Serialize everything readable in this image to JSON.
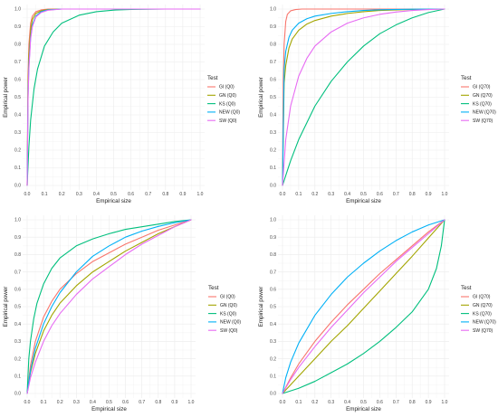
{
  "colors": {
    "GI": "#F8766D",
    "GN": "#A3A500",
    "KS": "#00BF7D",
    "NEW": "#00B0F6",
    "SW": "#E76BF3",
    "grid": "#ebebeb",
    "axis": "#444444"
  },
  "chart_data": [
    {
      "type": "line",
      "xlabel": "Empirical size",
      "ylabel": "Empirical power",
      "xlim": [
        0,
        1
      ],
      "ylim": [
        0,
        1
      ],
      "x_ticks": [
        "0.0",
        "0.1",
        "0.2",
        "0.3",
        "0.4",
        "0.5",
        "0.6",
        "0.7",
        "0.8",
        "0.9",
        "1.0"
      ],
      "y_ticks": [
        "0.0",
        "0.1",
        "0.2",
        "0.3",
        "0.4",
        "0.5",
        "0.6",
        "0.7",
        "0.8",
        "0.9",
        "1.0"
      ],
      "grid": true,
      "legend": {
        "title": "Test",
        "position": "right"
      },
      "series": [
        {
          "name": "GI (Q0)",
          "key": "GI",
          "x": [
            0,
            0.005,
            0.01,
            0.02,
            0.03,
            0.05,
            0.08,
            0.12,
            0.2,
            0.35,
            0.6,
            1
          ],
          "y": [
            0,
            0.62,
            0.8,
            0.92,
            0.96,
            0.985,
            0.995,
            1,
            1,
            1,
            1,
            1
          ]
        },
        {
          "name": "GN (Q0)",
          "key": "GN",
          "x": [
            0,
            0.005,
            0.01,
            0.02,
            0.03,
            0.05,
            0.08,
            0.12,
            0.2,
            0.35,
            0.6,
            1
          ],
          "y": [
            0,
            0.55,
            0.74,
            0.88,
            0.94,
            0.975,
            0.99,
            0.997,
            1,
            1,
            1,
            1
          ]
        },
        {
          "name": "KS (Q0)",
          "key": "KS",
          "x": [
            0,
            0.01,
            0.02,
            0.04,
            0.06,
            0.1,
            0.15,
            0.2,
            0.3,
            0.4,
            0.5,
            0.6,
            0.8,
            1
          ],
          "y": [
            0,
            0.22,
            0.37,
            0.55,
            0.66,
            0.79,
            0.87,
            0.92,
            0.965,
            0.985,
            0.994,
            0.998,
            1,
            1
          ]
        },
        {
          "name": "NEW (Q0)",
          "key": "NEW",
          "x": [
            0,
            0.005,
            0.01,
            0.02,
            0.03,
            0.05,
            0.08,
            0.12,
            0.2,
            0.35,
            0.6,
            1
          ],
          "y": [
            0,
            0.5,
            0.68,
            0.84,
            0.91,
            0.96,
            0.985,
            0.995,
            1,
            1,
            1,
            1
          ]
        },
        {
          "name": "SW (Q0)",
          "key": "SW",
          "x": [
            0,
            0.005,
            0.01,
            0.02,
            0.03,
            0.05,
            0.08,
            0.12,
            0.2,
            0.35,
            0.6,
            1
          ],
          "y": [
            0,
            0.48,
            0.66,
            0.83,
            0.9,
            0.955,
            0.98,
            0.993,
            1,
            1,
            1,
            1
          ]
        }
      ]
    },
    {
      "type": "line",
      "xlabel": "Empirical size",
      "ylabel": "Empirical power",
      "xlim": [
        0,
        1
      ],
      "ylim": [
        0,
        1
      ],
      "x_ticks": [
        "0.0",
        "0.1",
        "0.2",
        "0.3",
        "0.4",
        "0.5",
        "0.6",
        "0.7",
        "0.8",
        "0.9",
        "1.0"
      ],
      "y_ticks": [
        "0.0",
        "0.1",
        "0.2",
        "0.3",
        "0.4",
        "0.5",
        "0.6",
        "0.7",
        "0.8",
        "0.9",
        "1.0"
      ],
      "grid": true,
      "legend": {
        "title": "Test",
        "position": "right"
      },
      "series": [
        {
          "name": "GI (Q70)",
          "key": "GI",
          "x": [
            0,
            0.005,
            0.01,
            0.02,
            0.03,
            0.05,
            0.08,
            0.12,
            0.2,
            0.35,
            0.6,
            1
          ],
          "y": [
            0,
            0.6,
            0.8,
            0.93,
            0.97,
            0.99,
            0.997,
            1,
            1,
            1,
            1,
            1
          ]
        },
        {
          "name": "GN (Q70)",
          "key": "GN",
          "x": [
            0,
            0.01,
            0.02,
            0.04,
            0.06,
            0.1,
            0.15,
            0.2,
            0.3,
            0.4,
            0.5,
            0.6,
            0.8,
            1
          ],
          "y": [
            0,
            0.58,
            0.68,
            0.78,
            0.83,
            0.88,
            0.915,
            0.935,
            0.96,
            0.975,
            0.985,
            0.992,
            0.998,
            1
          ]
        },
        {
          "name": "KS (Q70)",
          "key": "KS",
          "x": [
            0,
            0.05,
            0.1,
            0.2,
            0.3,
            0.4,
            0.5,
            0.6,
            0.7,
            0.8,
            0.9,
            1
          ],
          "y": [
            0,
            0.14,
            0.26,
            0.45,
            0.59,
            0.7,
            0.79,
            0.86,
            0.91,
            0.95,
            0.98,
            1
          ]
        },
        {
          "name": "NEW (Q70)",
          "key": "NEW",
          "x": [
            0,
            0.01,
            0.02,
            0.04,
            0.06,
            0.1,
            0.15,
            0.2,
            0.3,
            0.4,
            0.5,
            0.6,
            0.8,
            1
          ],
          "y": [
            0,
            0.66,
            0.76,
            0.84,
            0.88,
            0.92,
            0.945,
            0.96,
            0.975,
            0.985,
            0.992,
            0.996,
            0.999,
            1
          ]
        },
        {
          "name": "SW (Q70)",
          "key": "SW",
          "x": [
            0,
            0.02,
            0.05,
            0.1,
            0.15,
            0.2,
            0.3,
            0.4,
            0.5,
            0.6,
            0.7,
            0.8,
            0.9,
            1
          ],
          "y": [
            0,
            0.26,
            0.45,
            0.62,
            0.72,
            0.79,
            0.87,
            0.92,
            0.95,
            0.97,
            0.983,
            0.992,
            0.997,
            1
          ]
        }
      ]
    },
    {
      "type": "line",
      "xlabel": "Empirical size",
      "ylabel": "Empirical power",
      "xlim": [
        0,
        1
      ],
      "ylim": [
        0,
        1
      ],
      "x_ticks": [
        "0.0",
        "0.1",
        "0.2",
        "0.3",
        "0.4",
        "0.5",
        "0.6",
        "0.7",
        "0.8",
        "0.9",
        "1.0"
      ],
      "y_ticks": [
        "0.0",
        "0.1",
        "0.2",
        "0.3",
        "0.4",
        "0.5",
        "0.6",
        "0.7",
        "0.8",
        "0.9",
        "1.0"
      ],
      "grid": true,
      "legend": {
        "title": "Test",
        "position": "right"
      },
      "series": [
        {
          "name": "GI (Q0)",
          "key": "GI",
          "x": [
            0,
            0.02,
            0.05,
            0.1,
            0.15,
            0.2,
            0.3,
            0.4,
            0.5,
            0.6,
            0.7,
            0.8,
            0.9,
            1
          ],
          "y": [
            0,
            0.16,
            0.3,
            0.44,
            0.53,
            0.6,
            0.69,
            0.76,
            0.81,
            0.86,
            0.9,
            0.94,
            0.97,
            1
          ]
        },
        {
          "name": "GN (Q0)",
          "key": "GN",
          "x": [
            0,
            0.02,
            0.05,
            0.1,
            0.15,
            0.2,
            0.3,
            0.4,
            0.5,
            0.6,
            0.7,
            0.8,
            0.9,
            1
          ],
          "y": [
            0,
            0.12,
            0.23,
            0.36,
            0.45,
            0.52,
            0.62,
            0.7,
            0.76,
            0.82,
            0.87,
            0.92,
            0.96,
            1
          ]
        },
        {
          "name": "KS (Q0)",
          "key": "KS",
          "x": [
            0,
            0.01,
            0.02,
            0.04,
            0.06,
            0.1,
            0.15,
            0.2,
            0.3,
            0.4,
            0.5,
            0.6,
            0.7,
            0.8,
            0.9,
            1
          ],
          "y": [
            0,
            0.2,
            0.3,
            0.43,
            0.52,
            0.63,
            0.72,
            0.78,
            0.85,
            0.89,
            0.92,
            0.945,
            0.96,
            0.975,
            0.99,
            1
          ]
        },
        {
          "name": "NEW (Q0)",
          "key": "NEW",
          "x": [
            0,
            0.02,
            0.05,
            0.1,
            0.15,
            0.2,
            0.3,
            0.4,
            0.5,
            0.6,
            0.7,
            0.8,
            0.9,
            1
          ],
          "y": [
            0,
            0.13,
            0.26,
            0.4,
            0.5,
            0.58,
            0.7,
            0.79,
            0.85,
            0.9,
            0.935,
            0.962,
            0.983,
            1
          ]
        },
        {
          "name": "SW (Q0)",
          "key": "SW",
          "x": [
            0,
            0.02,
            0.05,
            0.1,
            0.15,
            0.2,
            0.3,
            0.4,
            0.5,
            0.6,
            0.7,
            0.8,
            0.9,
            1
          ],
          "y": [
            0,
            0.09,
            0.18,
            0.3,
            0.39,
            0.46,
            0.57,
            0.66,
            0.73,
            0.8,
            0.86,
            0.91,
            0.96,
            1
          ]
        }
      ]
    },
    {
      "type": "line",
      "xlabel": "Empirical size",
      "ylabel": "Empirical power",
      "xlim": [
        0,
        1
      ],
      "ylim": [
        0,
        1
      ],
      "x_ticks": [
        "0.0",
        "0.1",
        "0.2",
        "0.3",
        "0.4",
        "0.5",
        "0.6",
        "0.7",
        "0.8",
        "0.9",
        "1.0"
      ],
      "y_ticks": [
        "0.0",
        "0.1",
        "0.2",
        "0.3",
        "0.4",
        "0.5",
        "0.6",
        "0.7",
        "0.8",
        "0.9",
        "1.0"
      ],
      "grid": true,
      "legend": {
        "title": "Test",
        "position": "right"
      },
      "series": [
        {
          "name": "GI (Q70)",
          "key": "GI",
          "x": [
            0,
            0.05,
            0.1,
            0.2,
            0.3,
            0.4,
            0.5,
            0.6,
            0.7,
            0.8,
            0.9,
            1
          ],
          "y": [
            0,
            0.09,
            0.17,
            0.3,
            0.41,
            0.51,
            0.6,
            0.69,
            0.77,
            0.85,
            0.93,
            1
          ]
        },
        {
          "name": "GN (Q70)",
          "key": "GN",
          "x": [
            0,
            0.05,
            0.1,
            0.2,
            0.3,
            0.4,
            0.5,
            0.6,
            0.7,
            0.8,
            0.9,
            1
          ],
          "y": [
            0,
            0.05,
            0.1,
            0.2,
            0.3,
            0.39,
            0.49,
            0.59,
            0.69,
            0.79,
            0.895,
            1
          ]
        },
        {
          "name": "KS (Q70)",
          "key": "KS",
          "x": [
            0,
            0.1,
            0.2,
            0.3,
            0.4,
            0.5,
            0.6,
            0.7,
            0.8,
            0.9,
            0.95,
            0.98,
            1
          ],
          "y": [
            0,
            0.03,
            0.07,
            0.12,
            0.17,
            0.23,
            0.3,
            0.38,
            0.47,
            0.6,
            0.72,
            0.85,
            1
          ]
        },
        {
          "name": "NEW (Q70)",
          "key": "NEW",
          "x": [
            0,
            0.02,
            0.05,
            0.1,
            0.2,
            0.3,
            0.4,
            0.5,
            0.6,
            0.7,
            0.8,
            0.9,
            1
          ],
          "y": [
            0,
            0.09,
            0.18,
            0.29,
            0.45,
            0.57,
            0.67,
            0.75,
            0.82,
            0.88,
            0.93,
            0.97,
            1
          ]
        },
        {
          "name": "SW (Q70)",
          "key": "SW",
          "x": [
            0,
            0.05,
            0.1,
            0.2,
            0.3,
            0.4,
            0.5,
            0.6,
            0.7,
            0.8,
            0.9,
            1
          ],
          "y": [
            0,
            0.08,
            0.15,
            0.27,
            0.38,
            0.48,
            0.58,
            0.67,
            0.76,
            0.84,
            0.92,
            1
          ]
        }
      ]
    }
  ]
}
